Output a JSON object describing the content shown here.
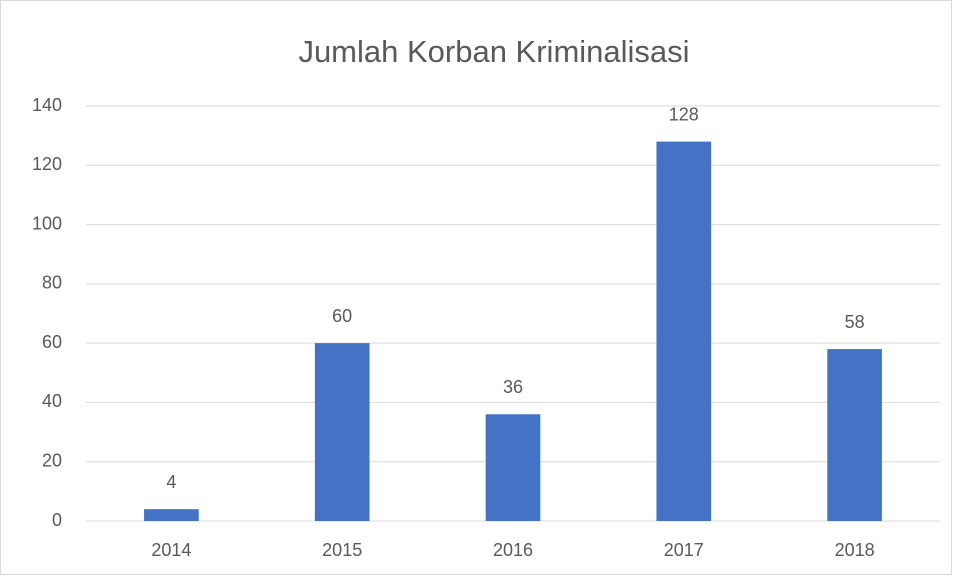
{
  "chart_data": {
    "type": "bar",
    "title": "Jumlah Korban Kriminalisasi",
    "categories": [
      "2014",
      "2015",
      "2016",
      "2017",
      "2018"
    ],
    "values": [
      4,
      60,
      36,
      128,
      58
    ],
    "color": "#4472c4",
    "ylim": [
      0,
      140
    ],
    "yticks": [
      0,
      20,
      40,
      60,
      80,
      100,
      120,
      140
    ],
    "grid": true
  }
}
